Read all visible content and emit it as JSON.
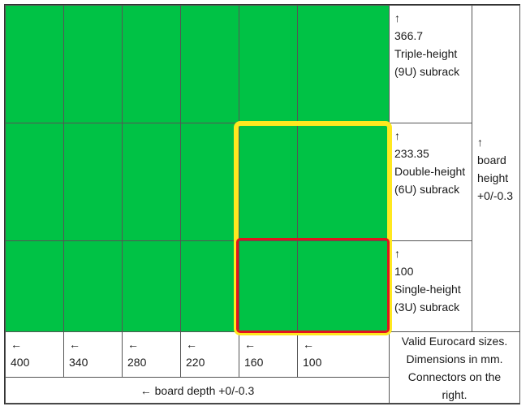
{
  "colors": {
    "board": "#00c245",
    "highlight_6u": "#ffe81f",
    "highlight_3u": "#e0141e"
  },
  "heights": [
    {
      "arrow": "↑",
      "value": "366.7",
      "name": "Triple-height",
      "unit": "(9U) subrack"
    },
    {
      "arrow": "↑",
      "value": "233.35",
      "name": "Double-height",
      "unit": "(6U) subrack"
    },
    {
      "arrow": "↑",
      "value": "100",
      "name": "Single-height",
      "unit": "(3U) subrack"
    }
  ],
  "height_tolerance": {
    "arrow": "↑",
    "line1": "board",
    "line2": "height",
    "line3": "+0/-0.3"
  },
  "depths": [
    {
      "arrow": "←",
      "value": "400"
    },
    {
      "arrow": "←",
      "value": "340"
    },
    {
      "arrow": "←",
      "value": "280"
    },
    {
      "arrow": "←",
      "value": "220"
    },
    {
      "arrow": "←",
      "value": "160"
    },
    {
      "arrow": "←",
      "value": "100"
    }
  ],
  "depth_tolerance": "← board depth +0/-0.3",
  "caption": {
    "line1": "Valid Eurocard sizes.",
    "line2": "Dimensions in mm.",
    "line3": "Connectors on the right."
  }
}
